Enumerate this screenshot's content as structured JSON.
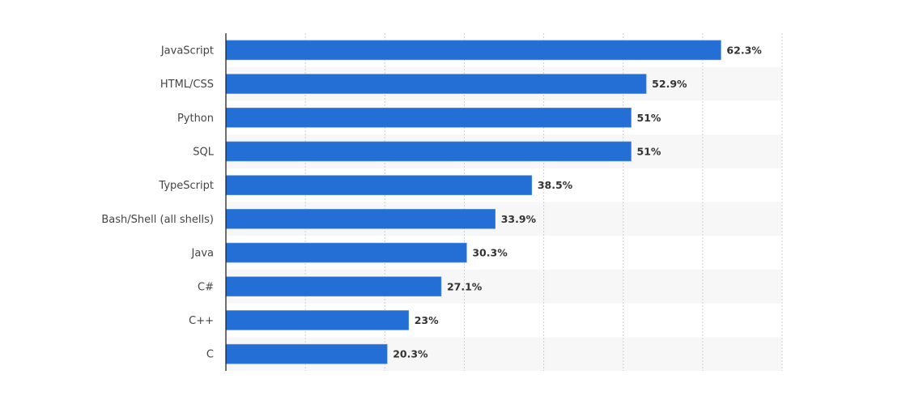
{
  "chart_data": {
    "type": "bar",
    "orientation": "horizontal",
    "categories": [
      "JavaScript",
      "HTML/CSS",
      "Python",
      "SQL",
      "TypeScript",
      "Bash/Shell (all shells)",
      "Java",
      "C#",
      "C++",
      "C"
    ],
    "values": [
      62.3,
      52.9,
      51,
      51,
      38.5,
      33.9,
      30.3,
      27.1,
      23,
      20.3
    ],
    "value_labels": [
      "62.3%",
      "52.9%",
      "51%",
      "51%",
      "38.5%",
      "33.9%",
      "30.3%",
      "27.1%",
      "23%",
      "20.3%"
    ],
    "title": "",
    "xlabel": "",
    "ylabel": "",
    "xlim": [
      0,
      70
    ],
    "grid": true,
    "tick_labels_shown": false,
    "colors": {
      "bar": "#246fd6",
      "band": "#f7f7f7",
      "grid": "#d0d0d0",
      "axis": "#222222"
    }
  }
}
